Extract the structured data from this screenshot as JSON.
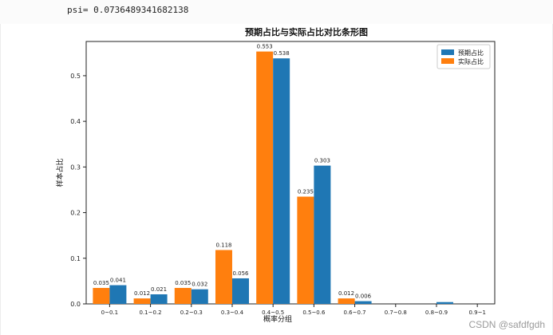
{
  "header": {
    "psi_text": "psi= 0.0736489341682138"
  },
  "watermark": "CSDN @safdfgdh",
  "colors": {
    "expected": "#1f77b4",
    "actual": "#ff7f0e"
  },
  "chart_data": {
    "type": "bar",
    "title": "预期占比与实际占比对比条形图",
    "xlabel": "概率分组",
    "ylabel": "样本占比",
    "ylim": [
      0,
      0.575
    ],
    "yticks": [
      0.0,
      0.1,
      0.2,
      0.3,
      0.4,
      0.5
    ],
    "ytick_labels": [
      "0.0",
      "0.1",
      "0.2",
      "0.3",
      "0.4",
      "0.5"
    ],
    "categories": [
      "0~0.1",
      "0.1~0.2",
      "0.2~0.3",
      "0.3~0.4",
      "0.4~0.5",
      "0.5~0.6",
      "0.6~0.7",
      "0.7~0.8",
      "0.8~0.9",
      "0.9~1"
    ],
    "series": [
      {
        "name": "实际占比",
        "color": "#ff7f0e",
        "values": [
          0.035,
          0.012,
          0.035,
          0.118,
          0.553,
          0.235,
          0.012,
          0,
          0,
          0
        ],
        "labels": [
          "0.035",
          "0.012",
          "0.035",
          "0.118",
          "0.553",
          "0.235",
          "0.012",
          "",
          "",
          ""
        ]
      },
      {
        "name": "预期占比",
        "color": "#1f77b4",
        "values": [
          0.041,
          0.021,
          0.032,
          0.056,
          0.538,
          0.303,
          0.006,
          0,
          0.004,
          0
        ],
        "labels": [
          "0.041",
          "0.021",
          "0.032",
          "0.056",
          "0.538",
          "0.303",
          "0.006",
          "",
          "",
          ""
        ]
      }
    ],
    "legend": {
      "placement": "top-right",
      "entries": [
        "预期占比",
        "实际占比"
      ]
    },
    "grid": false
  }
}
